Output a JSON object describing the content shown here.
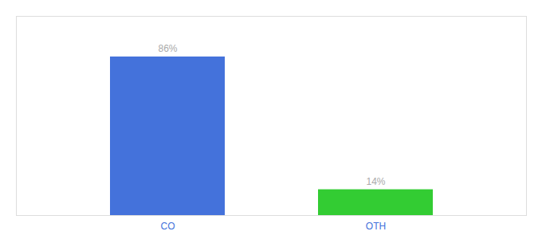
{
  "chart_data": {
    "type": "bar",
    "categories": [
      "CO",
      "OTH"
    ],
    "values": [
      86,
      14
    ],
    "value_labels": [
      "86%",
      "14%"
    ],
    "colors": [
      "#4472db",
      "#33cc33"
    ],
    "ylim": [
      0,
      108
    ],
    "data_labels": true,
    "tick_labels": "x"
  }
}
